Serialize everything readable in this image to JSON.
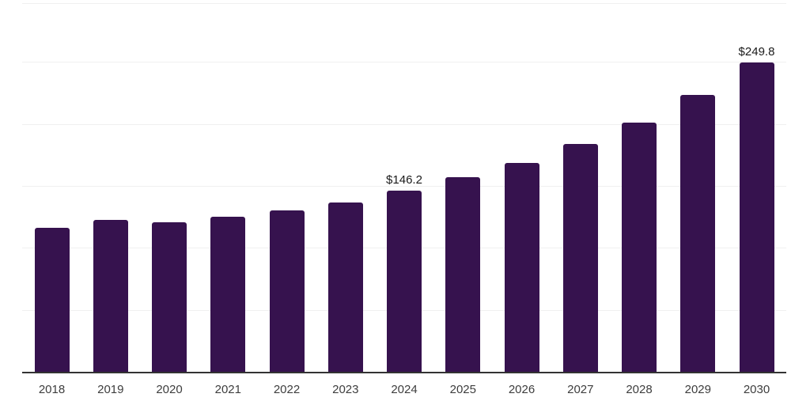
{
  "chart_data": {
    "type": "bar",
    "title": "",
    "xlabel": "",
    "ylabel": "",
    "categories": [
      "2018",
      "2019",
      "2020",
      "2021",
      "2022",
      "2023",
      "2024",
      "2025",
      "2026",
      "2027",
      "2028",
      "2029",
      "2030"
    ],
    "values": [
      116.2,
      122.6,
      120.7,
      125.1,
      130.2,
      136.6,
      146.2,
      156.9,
      168.8,
      183.9,
      201.1,
      223.5,
      249.8
    ],
    "data_labels": {
      "2024": "$146.2",
      "2030": "$249.8"
    },
    "ylim": [
      0,
      300
    ],
    "gridline_step": 50,
    "grid": true,
    "legend": false,
    "bar_color": "#36124e",
    "axis_line_color": "#333333",
    "gridline_color": "#f0f0f0",
    "tick_label_color": "#3d3d3d",
    "data_label_color": "#1a1a1a"
  }
}
